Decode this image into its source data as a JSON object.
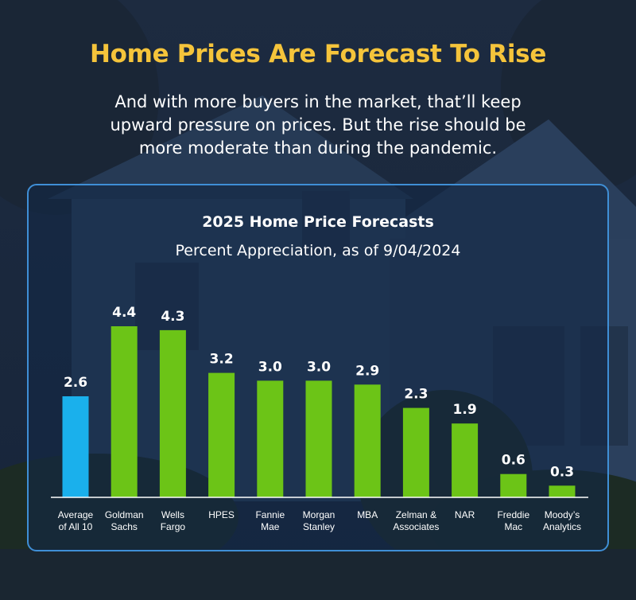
{
  "header": {
    "title": "Home Prices Are Forecast To Rise",
    "subtitle_lines": [
      "And with more buyers in the market, that’ll keep",
      "upward pressure on prices. But the rise should be",
      "more moderate than during the pandemic."
    ]
  },
  "colors": {
    "title": "#f5c43b",
    "highlight_bar": "#1ab0ec",
    "bar": "#6cc417",
    "panel_border": "#3f8fd6",
    "text": "#ffffff"
  },
  "chart_data": {
    "type": "bar",
    "title": "2025 Home Price Forecasts",
    "subtitle": "Percent Appreciation, as of 9/04/2024",
    "categories": [
      [
        "Average",
        "of All 10"
      ],
      [
        "Goldman",
        "Sachs"
      ],
      [
        "Wells",
        "Fargo"
      ],
      [
        "HPES"
      ],
      [
        "Fannie",
        "Mae"
      ],
      [
        "Morgan",
        "Stanley"
      ],
      [
        "MBA"
      ],
      [
        "Zelman &",
        "Associates"
      ],
      [
        "NAR"
      ],
      [
        "Freddie",
        "Mac"
      ],
      [
        "Moody’s",
        "Analytics"
      ]
    ],
    "values": [
      2.6,
      4.4,
      4.3,
      3.2,
      3.0,
      3.0,
      2.9,
      2.3,
      1.9,
      0.6,
      0.3
    ],
    "value_labels": [
      "2.6",
      "4.4",
      "4.3",
      "3.2",
      "3.0",
      "3.0",
      "2.9",
      "2.3",
      "1.9",
      "0.6",
      "0.3"
    ],
    "highlight_index": 0,
    "ylim": [
      0,
      4.4
    ],
    "grid": false,
    "xlabel": "",
    "ylabel": ""
  }
}
